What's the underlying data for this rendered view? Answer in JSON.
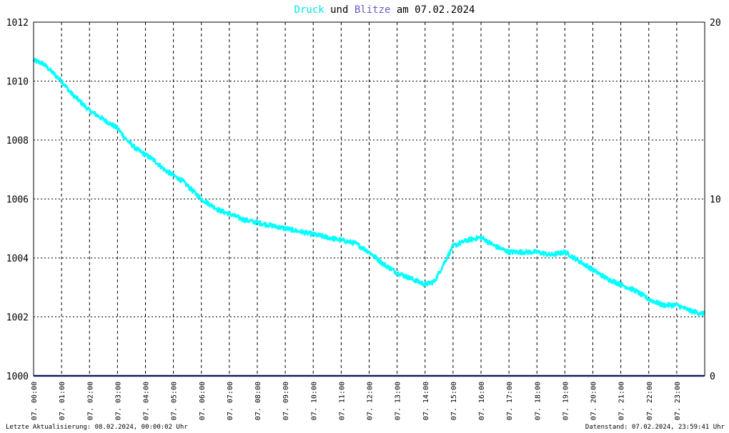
{
  "title": {
    "part1": "Druck",
    "part2": " und ",
    "part3": "Blitze",
    "part4": " am 07.02.2024"
  },
  "footer": {
    "left": "Letzte Aktualisierung: 08.02.2024, 00:00:02 Uhr",
    "right": "Datenstand: 07.02.2024, 23:59:41 Uhr"
  },
  "colors": {
    "background": "#ffffff",
    "pressure": "#00ffff",
    "lightning": "#3030a0",
    "grid": "#000000",
    "title_text": "#000000"
  },
  "chart_data": {
    "type": "line",
    "title": "Druck und Blitze am 07.02.2024",
    "grid": true,
    "x_ticks": [
      "07. 00:00",
      "07. 01:00",
      "07. 02:00",
      "07. 03:00",
      "07. 04:00",
      "07. 05:00",
      "07. 06:00",
      "07. 07:00",
      "07. 08:00",
      "07. 09:00",
      "07. 10:00",
      "07. 11:00",
      "07. 12:00",
      "07. 13:00",
      "07. 14:00",
      "07. 15:00",
      "07. 16:00",
      "07. 17:00",
      "07. 18:00",
      "07. 19:00",
      "07. 20:00",
      "07. 21:00",
      "07. 22:00",
      "07. 23:00"
    ],
    "xlim": [
      "07.02.2024 00:00",
      "07.02.2024 24:00"
    ],
    "y_left": {
      "ticks": [
        "1012",
        "1010",
        "1008",
        "1006",
        "1004",
        "1002",
        "1000"
      ],
      "min": 1000,
      "max": 1012
    },
    "y_right": {
      "ticks": [
        "20",
        "10",
        "0"
      ],
      "min": 0,
      "max": 20
    },
    "series": [
      {
        "name": "Druck",
        "axis": "left",
        "color": "#00ffff",
        "x": [
          "00:00",
          "00:20",
          "00:40",
          "01:00",
          "01:20",
          "01:40",
          "02:00",
          "02:20",
          "02:40",
          "03:00",
          "03:20",
          "03:40",
          "04:00",
          "04:20",
          "04:40",
          "05:00",
          "05:20",
          "05:40",
          "06:00",
          "06:20",
          "06:40",
          "07:00",
          "07:30",
          "08:00",
          "08:30",
          "09:00",
          "09:30",
          "10:00",
          "10:30",
          "11:00",
          "11:30",
          "12:00",
          "12:30",
          "13:00",
          "13:30",
          "14:00",
          "14:20",
          "14:40",
          "15:00",
          "15:30",
          "16:00",
          "16:30",
          "17:00",
          "17:30",
          "18:00",
          "18:30",
          "19:00",
          "19:30",
          "20:00",
          "20:30",
          "21:00",
          "21:30",
          "22:00",
          "22:30",
          "23:00",
          "23:30",
          "23:59"
        ],
        "y": [
          1010.7,
          1010.6,
          1010.3,
          1010.0,
          1009.6,
          1009.3,
          1009.0,
          1008.8,
          1008.6,
          1008.4,
          1008.0,
          1007.7,
          1007.5,
          1007.3,
          1007.0,
          1006.8,
          1006.6,
          1006.3,
          1006.0,
          1005.8,
          1005.6,
          1005.5,
          1005.3,
          1005.2,
          1005.1,
          1005.0,
          1004.9,
          1004.8,
          1004.7,
          1004.6,
          1004.5,
          1004.2,
          1003.8,
          1003.5,
          1003.3,
          1003.1,
          1003.2,
          1003.8,
          1004.4,
          1004.6,
          1004.7,
          1004.4,
          1004.2,
          1004.2,
          1004.2,
          1004.1,
          1004.2,
          1003.9,
          1003.6,
          1003.3,
          1003.1,
          1002.9,
          1002.6,
          1002.4,
          1002.4,
          1002.2,
          1002.1
        ]
      },
      {
        "name": "Blitze",
        "axis": "right",
        "color": "#3030a0",
        "x": [
          "00:00",
          "23:59"
        ],
        "y": [
          0,
          0
        ]
      }
    ]
  }
}
